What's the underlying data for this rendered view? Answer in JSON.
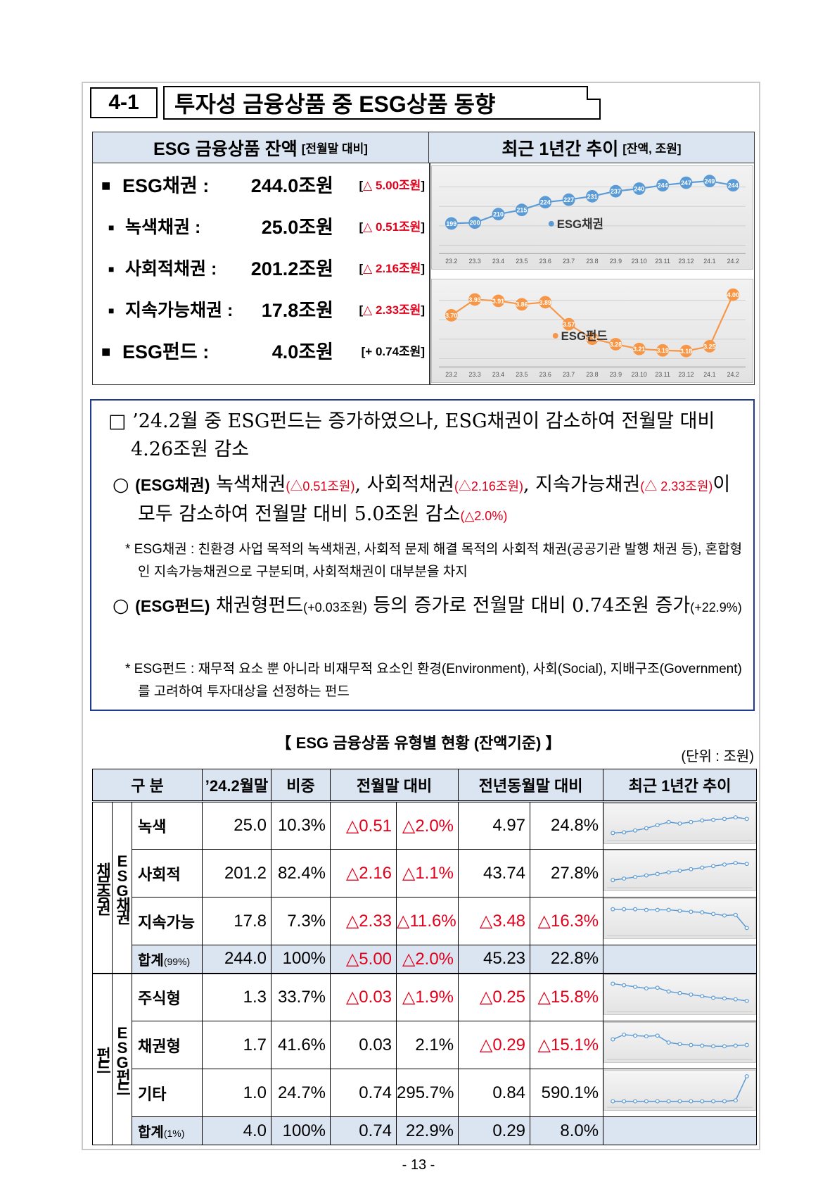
{
  "header": {
    "section_number": "4-1",
    "section_title": "투자성 금융상품 중 ESG상품 동향"
  },
  "summary": {
    "left_header": "ESG 금융상품 잔액",
    "left_header_note": "[전월말 대비]",
    "right_header": "최근 1년간 추이",
    "right_header_note": "[잔액, 조원]",
    "rows": [
      {
        "label": "ESG채권 :",
        "amount": "244.0조원",
        "change_open": "[",
        "change_value": "△ 5.00조원",
        "change_close": "]"
      },
      {
        "label": "녹색채권 :",
        "amount": "25.0조원",
        "change_open": "[",
        "change_value": "△ 0.51조원",
        "change_close": "]"
      },
      {
        "label": "사회적채권 :",
        "amount": "201.2조원",
        "change_open": "[",
        "change_value": "△ 2.16조원",
        "change_close": "]"
      },
      {
        "label": "지속가능채권 :",
        "amount": "17.8조원",
        "change_open": "[",
        "change_value": "△ 2.33조원",
        "change_close": "]"
      },
      {
        "label": "ESG펀드 :",
        "amount": "4.0조원",
        "change_open": "[",
        "change_value": "+ 0.74조원",
        "change_close": "]"
      }
    ]
  },
  "chart_data": [
    {
      "type": "line",
      "categories": [
        "23.2",
        "23.3",
        "23.4",
        "23.5",
        "23.6",
        "23.7",
        "23.8",
        "23.9",
        "23.10",
        "23.11",
        "23.12",
        "24.1",
        "24.2"
      ],
      "series": [
        {
          "name": "ESG채권",
          "values": [
            199,
            200,
            210,
            215,
            224,
            227,
            231,
            237,
            240,
            244,
            247,
            249,
            244
          ]
        }
      ],
      "value_labels": [
        "199",
        "200",
        "210",
        "215",
        "224",
        "227",
        "231",
        "237",
        "240",
        "244",
        "247",
        "249",
        "244"
      ],
      "line_color": "#5b9bd5"
    },
    {
      "type": "line",
      "categories": [
        "23.2",
        "23.3",
        "23.4",
        "23.5",
        "23.6",
        "23.7",
        "23.8",
        "23.9",
        "23.10",
        "23.11",
        "23.12",
        "24.1",
        "24.2"
      ],
      "series": [
        {
          "name": "ESG펀드",
          "values": [
            3.7,
            3.93,
            3.91,
            3.86,
            3.89,
            3.57,
            3.36,
            3.28,
            3.21,
            3.19,
            3.18,
            3.25,
            4.0
          ]
        }
      ],
      "value_labels": [
        "3.70",
        "3.93",
        "3.91",
        "3.86",
        "3.89",
        "3.57",
        "3.36",
        "3.28",
        "3.21",
        "3.19",
        "3.18",
        "3.25",
        "4.00"
      ],
      "line_color": "#f79646"
    }
  ],
  "textbox": {
    "p1_marker": "□",
    "p1_text": "’24.2월 중 ESG펀드는 증가하였으나, ESG채권이 감소하여 전월말 대비 4.26조원 감소",
    "p2_marker": "○",
    "p2_head": "(ESG채권)",
    "p2_a": " 녹색채권",
    "p2_a_val": "(△0.51조원)",
    "p2_b": ", 사회적채권",
    "p2_b_val": "(△2.16조원)",
    "p2_c": ", 지속가능채권",
    "p2_c_val": "(△ 2.33조원)",
    "p2_d": "이 모두 감소하여 전월말 대비 5.0조원 감소",
    "p2_d_val": "(△2.0%)",
    "note1": "* ESG채권 : 친환경 사업 목적의 녹색채권, 사회적 문제 해결 목적의 사회적 채권(공공기관 발행 채권 등), 혼합형인 지속가능채권으로 구분되며, 사회적채권이 대부분을 차지",
    "p3_marker": "○",
    "p3_head": "(ESG펀드)",
    "p3_a": " 채권형펀드",
    "p3_a_val": "(+0.03조원)",
    "p3_b": " 등의 증가로 전월말 대비 0.74조원 증가",
    "p3_b_val": "(+22.9%)",
    "note2": "* ESG펀드 : 재무적 요소 뿐 아니라 비재무적 요소인 환경(Environment), 사회(Social), 지배구조(Government)를 고려하여 투자대상을 선정하는 펀드"
  },
  "table": {
    "title": "【 ESG 금융상품 유형별 현황 (잔액기준) 】",
    "unit": "(단위 : 조원)",
    "headers": {
      "category": "구 분",
      "balance": "’24.2월말",
      "share": "비중",
      "mom": "전월말 대비",
      "yoy": "전년동월말 대비",
      "trend": "최근 1년간 추이"
    },
    "group1_outer": "채무증권",
    "group1_inner": "ESG채권",
    "group2_outer": "펀드",
    "group2_inner": "ESG펀드",
    "rows": [
      {
        "name": "녹색",
        "balance": "25.0",
        "share": "10.3%",
        "mom": "△0.51",
        "mom_pct": "△2.0%",
        "yoy": "4.97",
        "yoy_pct": "24.8%"
      },
      {
        "name": "사회적",
        "balance": "201.2",
        "share": "82.4%",
        "mom": "△2.16",
        "mom_pct": "△1.1%",
        "yoy": "43.74",
        "yoy_pct": "27.8%"
      },
      {
        "name": "지속가능",
        "balance": "17.8",
        "share": "7.3%",
        "mom": "△2.33",
        "mom_pct": "△11.6%",
        "yoy": "△3.48",
        "yoy_pct": "△16.3%"
      },
      {
        "name": "합계",
        "name_note": "(99%)",
        "balance": "244.0",
        "share": "100%",
        "mom": "△5.00",
        "mom_pct": "△2.0%",
        "yoy": "45.23",
        "yoy_pct": "22.8%"
      },
      {
        "name": "주식형",
        "balance": "1.3",
        "share": "33.7%",
        "mom": "△0.03",
        "mom_pct": "△1.9%",
        "yoy": "△0.25",
        "yoy_pct": "△15.8%"
      },
      {
        "name": "채권형",
        "balance": "1.7",
        "share": "41.6%",
        "mom": "0.03",
        "mom_pct": "2.1%",
        "yoy": "△0.29",
        "yoy_pct": "△15.1%"
      },
      {
        "name": "기타",
        "balance": "1.0",
        "share": "24.7%",
        "mom": "0.74",
        "mom_pct": "295.7%",
        "yoy": "0.84",
        "yoy_pct": "590.1%"
      },
      {
        "name": "합계",
        "name_note": "(1%)",
        "balance": "4.0",
        "share": "100%",
        "mom": "0.74",
        "mom_pct": "22.9%",
        "yoy": "0.29",
        "yoy_pct": "8.0%"
      }
    ],
    "sparklines": {
      "green": [
        0.2,
        0.22,
        0.28,
        0.35,
        0.45,
        0.55,
        0.5,
        0.55,
        0.6,
        0.62,
        0.65,
        0.7,
        0.65
      ],
      "social": [
        0.2,
        0.25,
        0.3,
        0.35,
        0.4,
        0.45,
        0.5,
        0.55,
        0.6,
        0.65,
        0.7,
        0.75,
        0.72
      ],
      "sustain": [
        0.8,
        0.8,
        0.8,
        0.78,
        0.78,
        0.78,
        0.75,
        0.72,
        0.7,
        0.65,
        0.6,
        0.62,
        0.2
      ],
      "equity": [
        0.85,
        0.8,
        0.75,
        0.7,
        0.72,
        0.6,
        0.55,
        0.5,
        0.45,
        0.4,
        0.38,
        0.35,
        0.3
      ],
      "bond": [
        0.6,
        0.75,
        0.72,
        0.7,
        0.72,
        0.5,
        0.45,
        0.42,
        0.4,
        0.38,
        0.38,
        0.4,
        0.42
      ],
      "other": [
        0.15,
        0.15,
        0.15,
        0.15,
        0.15,
        0.15,
        0.15,
        0.15,
        0.15,
        0.15,
        0.15,
        0.18,
        0.95
      ]
    }
  },
  "footer": {
    "page": "- 13 -"
  }
}
